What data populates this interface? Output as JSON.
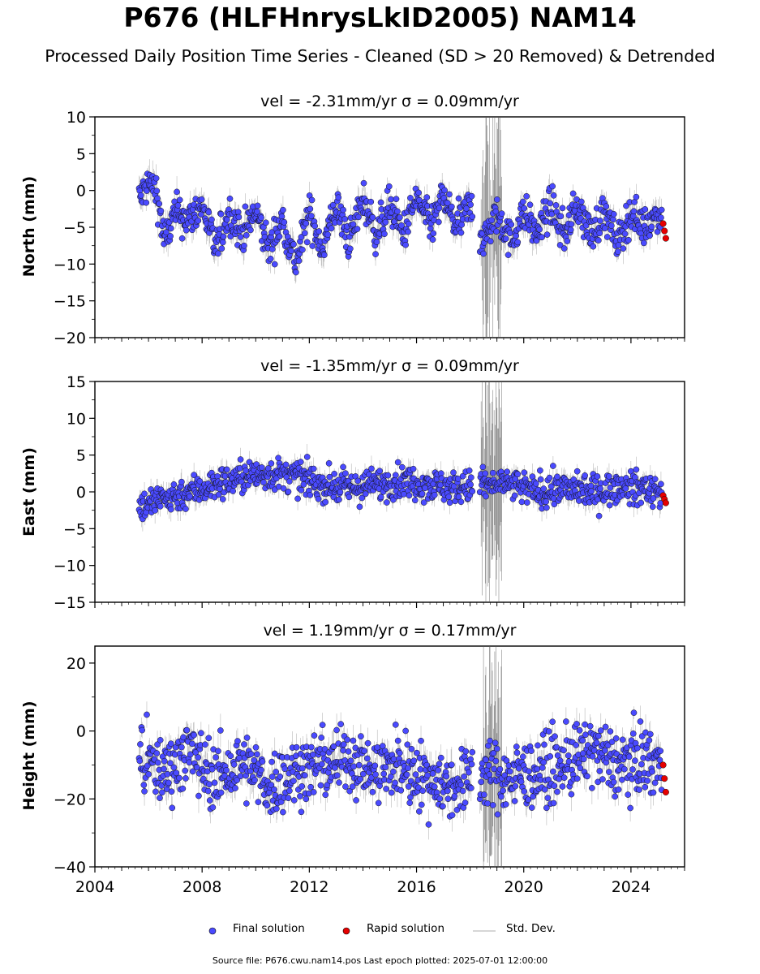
{
  "header": {
    "title": "P676 (HLFHnrysLkID2005) NAM14",
    "subtitle": "Processed Daily Position Time Series - Cleaned (SD > 20 Removed) & Detrended"
  },
  "panels": [
    {
      "id": "north",
      "title": "vel = -2.31mm/yr   σ = 0.09mm/yr",
      "ylabel": "North (mm)"
    },
    {
      "id": "east",
      "title": "vel = -1.35mm/yr   σ = 0.09mm/yr",
      "ylabel": "East (mm)"
    },
    {
      "id": "height",
      "title": "vel = 1.19mm/yr   σ = 0.17mm/yr",
      "ylabel": "Height (mm)"
    }
  ],
  "legend": {
    "final": "Final solution",
    "rapid": "Rapid solution",
    "std": "Std. Dev."
  },
  "footer": {
    "source": "Source file: P676.cwu.nam14.pos  Last epoch plotted: 2025-07-01 12:00:00"
  },
  "colors": {
    "final": "#4a4aff",
    "rapid": "#e60000",
    "std": "#9a9a9a"
  },
  "chart_data": [
    {
      "type": "scatter",
      "title": "vel = -2.31mm/yr   σ = 0.09mm/yr",
      "ylabel": "North (mm)",
      "xlim": [
        2004,
        2026
      ],
      "ylim": [
        -20,
        10
      ],
      "xticks": [
        2004,
        2008,
        2012,
        2016,
        2020,
        2024
      ],
      "yticks": [
        10,
        5,
        0,
        -5,
        -10,
        -15,
        -20
      ],
      "series": [
        {
          "name": "Final solution",
          "x": [
            2005.7,
            2006.0,
            2006.3,
            2006.6,
            2007.0,
            2007.5,
            2008.0,
            2008.5,
            2009.0,
            2009.5,
            2010.0,
            2010.5,
            2011.0,
            2011.5,
            2012.0,
            2012.5,
            2013.0,
            2013.5,
            2014.0,
            2014.5,
            2015.0,
            2015.5,
            2016.0,
            2016.5,
            2017.0,
            2017.5,
            2018.0,
            2018.5,
            2019.0,
            2019.5,
            2020.0,
            2020.5,
            2021.0,
            2021.5,
            2022.0,
            2022.5,
            2023.0,
            2023.5,
            2024.0,
            2024.5,
            2025.0
          ],
          "y": [
            -1,
            1,
            0,
            -7,
            -3,
            -4,
            -2,
            -8,
            -3,
            -6,
            -3,
            -8,
            -4,
            -10,
            -3,
            -8,
            -2,
            -7,
            -1,
            -6,
            -2,
            -6,
            -1,
            -5,
            -1,
            -5,
            -2,
            -7,
            -3,
            -7,
            -3,
            -6,
            -2,
            -6,
            -2,
            -6,
            -3,
            -7,
            -3,
            -5,
            -3
          ]
        },
        {
          "name": "Rapid solution",
          "x": [
            2025.2,
            2025.25,
            2025.3
          ],
          "y": [
            -4.5,
            -5.5,
            -6.5
          ]
        }
      ]
    },
    {
      "type": "scatter",
      "title": "vel = -1.35mm/yr   σ = 0.09mm/yr",
      "ylabel": "East (mm)",
      "xlim": [
        2004,
        2026
      ],
      "ylim": [
        -15,
        15
      ],
      "xticks": [
        2004,
        2008,
        2012,
        2016,
        2020,
        2024
      ],
      "yticks": [
        15,
        10,
        5,
        0,
        -5,
        -10,
        -15
      ],
      "series": [
        {
          "name": "Final solution",
          "x": [
            2005.7,
            2006.5,
            2007.5,
            2008.5,
            2009.5,
            2010.5,
            2011.5,
            2012.5,
            2013.5,
            2014.5,
            2015.5,
            2016.5,
            2017.5,
            2018.5,
            2019.5,
            2020.5,
            2021.5,
            2022.5,
            2023.5,
            2024.5,
            2025.0
          ],
          "y": [
            -2,
            -1,
            0,
            1,
            2,
            2.5,
            2,
            1,
            0.5,
            1,
            1.5,
            1,
            0.5,
            1,
            1,
            0,
            0.5,
            0,
            0.5,
            0.5,
            0
          ]
        },
        {
          "name": "Rapid solution",
          "x": [
            2025.2,
            2025.25,
            2025.3
          ],
          "y": [
            -0.5,
            -1,
            -1.5
          ]
        }
      ]
    },
    {
      "type": "scatter",
      "title": "vel = 1.19mm/yr   σ = 0.17mm/yr",
      "ylabel": "Height (mm)",
      "xlim": [
        2004,
        2026
      ],
      "ylim": [
        -40,
        25
      ],
      "xticks": [
        2004,
        2008,
        2012,
        2016,
        2020,
        2024
      ],
      "yticks": [
        20,
        0,
        -20,
        -40
      ],
      "series": [
        {
          "name": "Final solution",
          "x": [
            2005.7,
            2006.5,
            2007.5,
            2008.5,
            2009.5,
            2010.5,
            2011.5,
            2012.5,
            2013.5,
            2014.5,
            2015.5,
            2016.5,
            2017.5,
            2018.5,
            2019.5,
            2020.5,
            2021.5,
            2022.5,
            2023.5,
            2024.5,
            2025.0
          ],
          "y": [
            -8,
            -12,
            -6,
            -14,
            -10,
            -16,
            -12,
            -10,
            -8,
            -12,
            -10,
            -14,
            -16,
            -12,
            -14,
            -12,
            -10,
            -6,
            -10,
            -8,
            -10
          ]
        },
        {
          "name": "Rapid solution",
          "x": [
            2025.2,
            2025.25,
            2025.3
          ],
          "y": [
            -10,
            -14,
            -18
          ]
        }
      ]
    }
  ]
}
